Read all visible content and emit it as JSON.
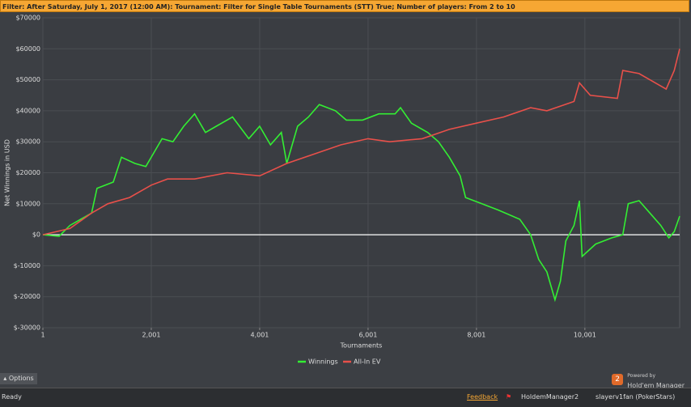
{
  "filter_bar": {
    "text": "Filter: After Saturday, July 1, 2017 (12:00 AM): Tournament: Filter for Single Table Tournaments (STT) True; Number of players: From 2 to 10"
  },
  "chart_data": {
    "type": "line",
    "x_label": "Tournaments",
    "y_label": "Net Winnings in USD",
    "xlim": [
      1,
      11750
    ],
    "ylim": [
      -30000,
      70000
    ],
    "xticks": [
      1,
      {
        "value": 2001,
        "label": "2,001"
      },
      {
        "value": 4001,
        "label": "4,001"
      },
      {
        "value": 6001,
        "label": "6,001"
      },
      {
        "value": 8001,
        "label": "8,001"
      },
      {
        "value": 10001,
        "label": "10,001"
      }
    ],
    "yticks": [
      {
        "value": -30000,
        "label": "$-30000"
      },
      {
        "value": -20000,
        "label": "$-20000"
      },
      {
        "value": -10000,
        "label": "$-10000"
      },
      {
        "value": 0,
        "label": "$0"
      },
      {
        "value": 10000,
        "label": "$10000"
      },
      {
        "value": 20000,
        "label": "$20000"
      },
      {
        "value": 30000,
        "label": "$30000"
      },
      {
        "value": 40000,
        "label": "$40000"
      },
      {
        "value": 50000,
        "label": "$50000"
      },
      {
        "value": 60000,
        "label": "$60000"
      },
      {
        "value": 70000,
        "label": "$70000"
      }
    ],
    "grid": true,
    "legend": "bottom",
    "series": [
      {
        "name": "Winnings",
        "color": "#33ee33",
        "x": [
          1,
          300,
          500,
          700,
          900,
          1000,
          1300,
          1450,
          1700,
          1900,
          2200,
          2400,
          2600,
          2800,
          3000,
          3200,
          3500,
          3800,
          4000,
          4200,
          4400,
          4500,
          4700,
          4900,
          5100,
          5400,
          5600,
          5900,
          6200,
          6500,
          6600,
          6800,
          7100,
          7300,
          7500,
          7700,
          7800,
          8100,
          8400,
          8800,
          9000,
          9150,
          9300,
          9450,
          9550,
          9650,
          9800,
          9900,
          9950,
          10200,
          10500,
          10700,
          10800,
          11000,
          11200,
          11400,
          11550,
          11650,
          11750
        ],
        "values": [
          0,
          -500,
          3000,
          5000,
          7000,
          15000,
          17000,
          25000,
          23000,
          22000,
          31000,
          30000,
          35000,
          39000,
          33000,
          35000,
          38000,
          31000,
          35000,
          29000,
          33000,
          23000,
          35000,
          38000,
          42000,
          40000,
          37000,
          37000,
          39000,
          39000,
          41000,
          36000,
          33000,
          30000,
          25000,
          19000,
          12000,
          10000,
          8000,
          5000,
          0,
          -8000,
          -12000,
          -21000,
          -15000,
          -2000,
          3000,
          11000,
          -7000,
          -3000,
          -1000,
          0,
          10000,
          11000,
          7000,
          3000,
          -1000,
          1000,
          6000
        ]
      },
      {
        "name": "All-In EV",
        "color": "#e8504a",
        "x": [
          1,
          500,
          900,
          1200,
          1600,
          2000,
          2300,
          2800,
          3400,
          4000,
          4500,
          5000,
          5500,
          6000,
          6400,
          7000,
          7500,
          8000,
          8500,
          9000,
          9300,
          9800,
          9900,
          10100,
          10600,
          10700,
          11000,
          11300,
          11500,
          11650,
          11750
        ],
        "values": [
          0,
          2000,
          7000,
          10000,
          12000,
          16000,
          18000,
          18000,
          20000,
          19000,
          23000,
          26000,
          29000,
          31000,
          30000,
          31000,
          34000,
          36000,
          38000,
          41000,
          40000,
          43000,
          49000,
          45000,
          44000,
          53000,
          52000,
          49000,
          47000,
          53000,
          60000
        ]
      }
    ]
  },
  "options_button": "Options",
  "branding": {
    "powered_by": "Powered by",
    "name": "Hold'em Manager"
  },
  "status_bar": {
    "status": "Ready",
    "feedback": "Feedback",
    "app": "HoldemManager2",
    "user": "slayerv1fan (PokerStars)"
  }
}
